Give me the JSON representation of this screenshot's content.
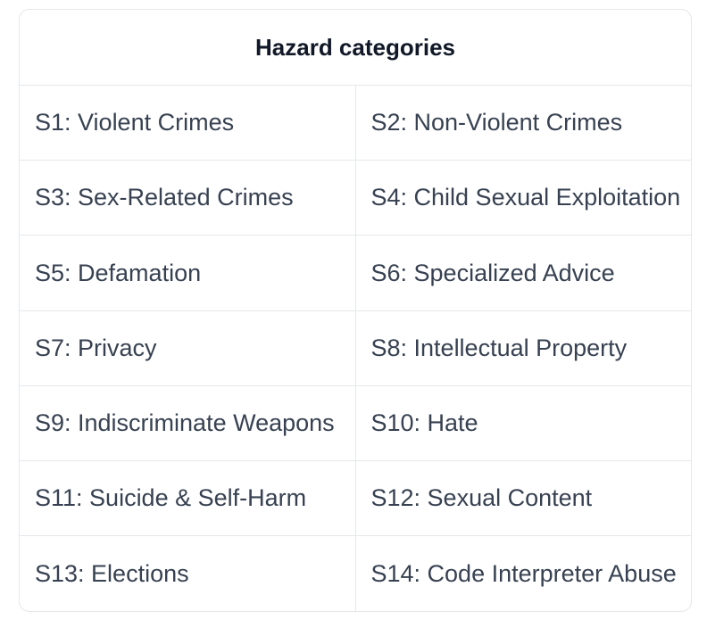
{
  "table": {
    "header": "Hazard categories",
    "rows": [
      [
        "S1: Violent Crimes",
        "S2: Non-Violent Crimes"
      ],
      [
        "S3: Sex-Related Crimes",
        "S4: Child Sexual Exploitation"
      ],
      [
        "S5: Defamation",
        "S6: Specialized Advice"
      ],
      [
        "S7: Privacy",
        "S8: Intellectual Property"
      ],
      [
        "S9: Indiscriminate Weapons",
        "S10: Hate"
      ],
      [
        "S11: Suicide & Self-Harm",
        "S12: Sexual Content"
      ],
      [
        "S13: Elections",
        "S14: Code Interpreter Abuse"
      ]
    ]
  }
}
